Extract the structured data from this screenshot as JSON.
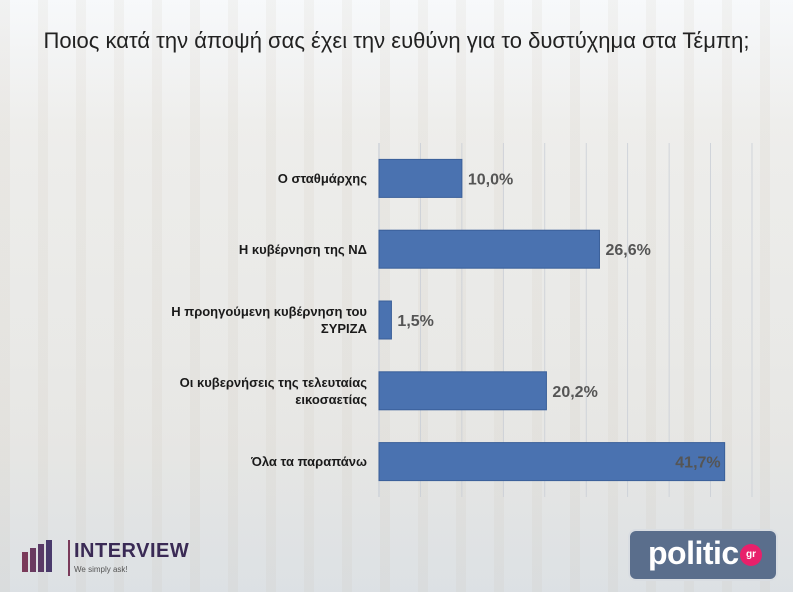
{
  "title": "Ποιος κατά την άποψή σας έχει την ευθύνη για το δυστύχημα στα Τέμπη;",
  "colors": {
    "bar": "#4a72b0",
    "bar_edge": "#3a5f99",
    "grid": "#c9ced6",
    "value_text": "#555555"
  },
  "chart_data": {
    "type": "bar",
    "orientation": "horizontal",
    "categories": [
      "Ο σταθμάρχης",
      "Η κυβέρνηση της ΝΔ",
      "Η προηγούμενη κυβέρνηση του ΣΥΡΙΖΑ",
      "Οι κυβερνήσεις της τελευταίας εικοσαετίας",
      "Όλα τα παραπάνω"
    ],
    "category_lines": [
      [
        "Ο σταθμάρχης"
      ],
      [
        "Η κυβέρνηση της ΝΔ"
      ],
      [
        "Η προηγούμενη κυβέρνηση του",
        "ΣΥΡΙΖΑ"
      ],
      [
        "Οι κυβερνήσεις της τελευταίας",
        "εικοσαετίας"
      ],
      [
        "Όλα τα παραπάνω"
      ]
    ],
    "values": [
      10.0,
      26.6,
      1.5,
      20.2,
      41.7
    ],
    "value_labels": [
      "10,0%",
      "26,6%",
      "1,5%",
      "20,2%",
      "41,7%"
    ],
    "xlim": [
      0,
      45
    ],
    "grid": true,
    "title": "Ποιος κατά την άποψή σας έχει την ευθύνη για το δυστύχημα στα Τέμπη;"
  },
  "branding": {
    "left_logo": {
      "name": "INTERVIEW",
      "tagline": "We simply ask!"
    },
    "right_logo": {
      "name": "politic",
      "suffix": "gr"
    }
  }
}
